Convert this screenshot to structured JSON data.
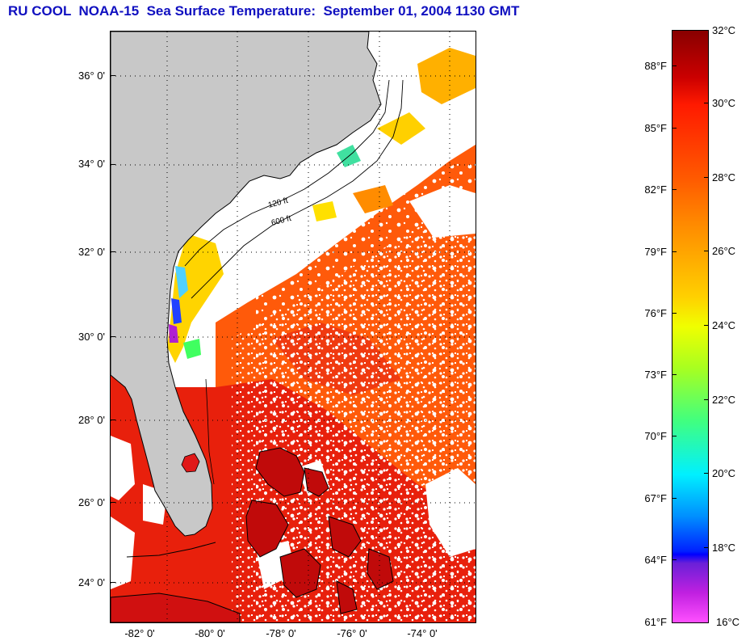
{
  "title": "RU COOL  NOAA-15  Sea Surface Temperature:  September 01, 2004 1130 GMT",
  "map": {
    "lat_labels": [
      "36° 0'",
      "34° 0'",
      "32° 0'",
      "30° 0'",
      "28° 0'",
      "26° 0'",
      "24° 0'"
    ],
    "lon_labels": [
      "-82° 0'",
      "-80° 0'",
      "-78° 0'",
      "-76° 0'",
      "-74° 0'"
    ],
    "isobath_labels": [
      "120 ft",
      "600 ft"
    ],
    "colors": {
      "land": "#c8c8c8",
      "cloud": "#ffffff",
      "warm_water": "#ff5500",
      "hot_water": "#e8150a",
      "cool_water": "#ffd000"
    }
  },
  "colorbar": {
    "celsius_labels": [
      "32°C",
      "30°C",
      "28°C",
      "26°C",
      "24°C",
      "22°C",
      "20°C",
      "18°C",
      "16°C"
    ],
    "fahrenheit_labels": [
      "88°F",
      "85°F",
      "82°F",
      "79°F",
      "76°F",
      "73°F",
      "70°F",
      "67°F",
      "64°F",
      "61°F"
    ],
    "range_c": [
      16,
      32
    ]
  }
}
